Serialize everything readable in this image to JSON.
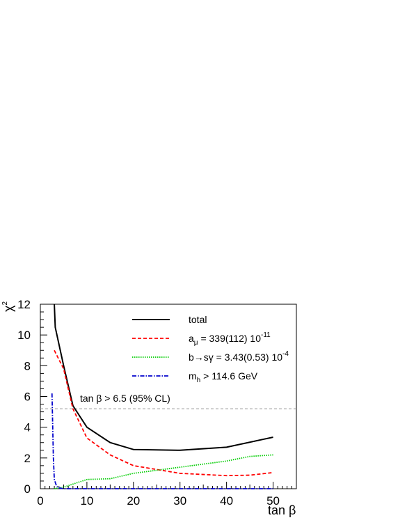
{
  "chart_data": {
    "type": "line",
    "xlabel": "tan β",
    "ylabel": "χ²",
    "xlim": [
      0,
      55
    ],
    "ylim": [
      0,
      12
    ],
    "x_ticks": [
      0,
      10,
      20,
      30,
      40,
      50
    ],
    "y_ticks": [
      0,
      2,
      4,
      6,
      8,
      10,
      12
    ],
    "series": [
      {
        "name": "total",
        "color": "#000000",
        "style": "solid",
        "x": [
          3,
          3.2,
          5,
          7,
          10,
          15,
          20,
          30,
          40,
          50
        ],
        "y": [
          12.0,
          10.5,
          8.0,
          5.4,
          4.0,
          3.0,
          2.55,
          2.5,
          2.7,
          3.35
        ]
      },
      {
        "name": "a_μ = 339(112) 10^-11",
        "color": "#ff0000",
        "style": "dashed",
        "x": [
          3,
          5,
          7,
          10,
          15,
          20,
          30,
          40,
          45,
          50
        ],
        "y": [
          9.0,
          7.8,
          5.2,
          3.3,
          2.2,
          1.5,
          1.0,
          0.85,
          0.88,
          1.05
        ]
      },
      {
        "name": "b→sγ = 3.43(0.53) 10^-4",
        "color": "#00cc00",
        "style": "dotted",
        "x": [
          3,
          5,
          7,
          10,
          15,
          20,
          30,
          40,
          45,
          50
        ],
        "y": [
          0.0,
          0.1,
          0.3,
          0.6,
          0.65,
          1.0,
          1.4,
          1.8,
          2.1,
          2.2
        ]
      },
      {
        "name": "m_h > 114.6 GeV",
        "color": "#0000cc",
        "style": "dashdot",
        "x": [
          2.5,
          2.8,
          3.0,
          3.5,
          4.0,
          5.0,
          10,
          20,
          30,
          40,
          50
        ],
        "y": [
          6.2,
          2.0,
          0.6,
          0.15,
          0.05,
          0.0,
          0.0,
          0.0,
          0.0,
          0.0,
          0.0
        ]
      }
    ],
    "reference_line": {
      "y": 5.2,
      "label": "tan β > 6.5 (95% CL)",
      "color": "#999999"
    },
    "legend": [
      {
        "main": "total"
      },
      {
        "main": "a",
        "sub": "μ",
        "rest": " = 339(112) 10",
        "sup": "-11"
      },
      {
        "main": "b→sγ = 3.43(0.53) 10",
        "sup": "-4"
      },
      {
        "main": "m",
        "sub": "h",
        "rest": " > 114.6 GeV"
      }
    ]
  }
}
